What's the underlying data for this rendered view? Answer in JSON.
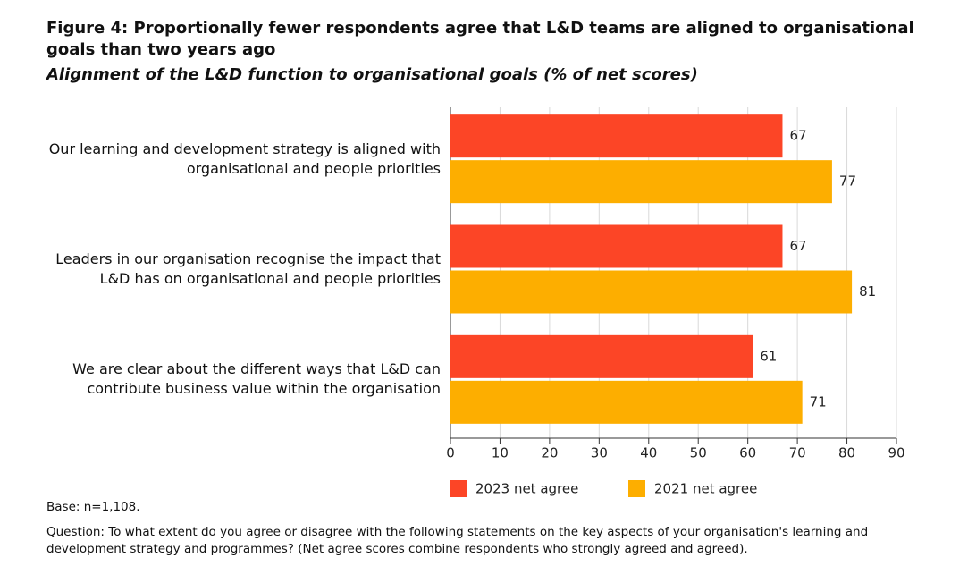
{
  "chart_data": {
    "type": "hbar",
    "title": "Figure 4: Proportionally fewer respondents agree that L&D teams are aligned to organisational goals than two years ago",
    "subtitle": "Alignment of the L&D function to organisational goals (% of net scores)",
    "categories": [
      "Our learning and development strategy is aligned with organisational and people priorities",
      "Leaders in our organisation recognise the impact that L&D has on organisational and people priorities",
      "We are clear about the different ways that L&D can contribute business value within the organisation"
    ],
    "series": [
      {
        "name": "2023 net agree",
        "color": "#fc4526",
        "values": [
          67,
          67,
          61
        ]
      },
      {
        "name": "2021 net agree",
        "color": "#fdae00",
        "values": [
          77,
          81,
          71
        ]
      }
    ],
    "xlim": [
      0,
      90
    ],
    "xticks": [
      0,
      10,
      20,
      30,
      40,
      50,
      60,
      70,
      80,
      90
    ],
    "grid": true,
    "notes": [
      "Base: n=1,108.",
      "Question: To what extent do you agree or disagree with the following statements on the key aspects of your organisation's learning and development strategy and programmes? (Net agree scores combine respondents who strongly agreed and agreed)."
    ]
  }
}
